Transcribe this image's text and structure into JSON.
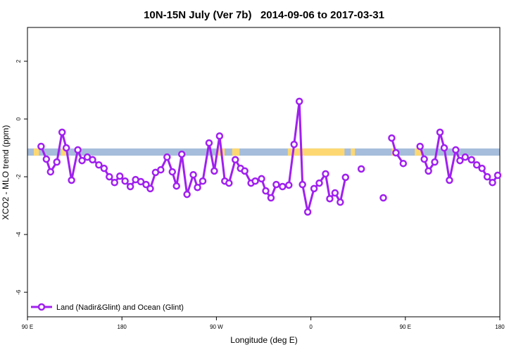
{
  "chart_data": {
    "type": "line",
    "title": "10N-15N July (Ver 7b)   2014-09-06 to 2017-03-31",
    "x_label": "Longitude (deg E)",
    "y_label": "XCO2 - MLO trend (ppm)",
    "xlim": [
      90,
      540
    ],
    "xticks": [
      {
        "value": 90,
        "label": "90 E"
      },
      {
        "value": 180,
        "label": "180"
      },
      {
        "value": 270,
        "label": "90 W"
      },
      {
        "value": 360,
        "label": "0"
      },
      {
        "value": 450,
        "label": "90 E"
      },
      {
        "value": 540,
        "label": "180"
      }
    ],
    "ylim": [
      -6.85,
      3.17
    ],
    "yticks": [
      -6,
      -4,
      -2,
      0,
      2
    ],
    "band": {
      "ylim": [
        -1.27,
        -1.02
      ],
      "color": "#a6bddb",
      "land_color": "#fdd872",
      "land": [
        [
          96,
          101
        ],
        [
          122,
          127
        ],
        [
          270,
          278
        ],
        [
          285,
          292
        ],
        [
          338,
          392
        ],
        [
          398,
          402
        ],
        [
          437,
          440
        ],
        [
          459,
          465
        ]
      ]
    },
    "legend": "bottom-left",
    "series": [
      {
        "name": "Land (Nadir&Glint) and Ocean (Glint)",
        "color": "#a020f0",
        "x": [
          103,
          108,
          112,
          118,
          123,
          127,
          132,
          138,
          142,
          147,
          152,
          158,
          163,
          168,
          173,
          178,
          183,
          188,
          193,
          198,
          203,
          207,
          212,
          217,
          223,
          228,
          232,
          237,
          242,
          248,
          252,
          257,
          263,
          268,
          273,
          278,
          282,
          288,
          293,
          297,
          303,
          307,
          313,
          317,
          322,
          327,
          333,
          339,
          344,
          349,
          352,
          357,
          363,
          368,
          374,
          378,
          383,
          388,
          393,
          null,
          408,
          null,
          429,
          null,
          437,
          441,
          448,
          null,
          464,
          468,
          472,
          478,
          483,
          487,
          492,
          498,
          502,
          507,
          513,
          518,
          523,
          528,
          533,
          538
        ],
        "values": [
          -0.95,
          -1.39,
          -1.83,
          -1.49,
          -0.46,
          -1.0,
          -2.12,
          -1.07,
          -1.44,
          -1.32,
          -1.41,
          -1.59,
          -1.71,
          -2.0,
          -2.2,
          -1.98,
          -2.15,
          -2.34,
          -2.1,
          -2.17,
          -2.27,
          -2.41,
          -1.85,
          -1.76,
          -1.32,
          -1.83,
          -2.32,
          -1.22,
          -2.61,
          -1.93,
          -2.37,
          -2.15,
          -0.83,
          -1.8,
          -0.59,
          -2.15,
          -2.22,
          -1.41,
          -1.71,
          -1.8,
          -2.22,
          -2.15,
          -2.07,
          -2.49,
          -2.73,
          -2.27,
          -2.34,
          -2.29,
          -0.88,
          0.61,
          -2.27,
          -3.22,
          -2.41,
          -2.22,
          -1.9,
          -2.76,
          -2.56,
          -2.88,
          -2.02,
          null,
          -1.73,
          null,
          -2.73,
          null,
          -0.66,
          -1.17,
          -1.54,
          null,
          -0.95,
          -1.39,
          -1.8,
          -1.49,
          -0.46,
          -1.0,
          -2.12,
          -1.07,
          -1.44,
          -1.32,
          -1.41,
          -1.59,
          -1.71,
          -2.0,
          -2.2,
          -1.95
        ]
      }
    ]
  }
}
